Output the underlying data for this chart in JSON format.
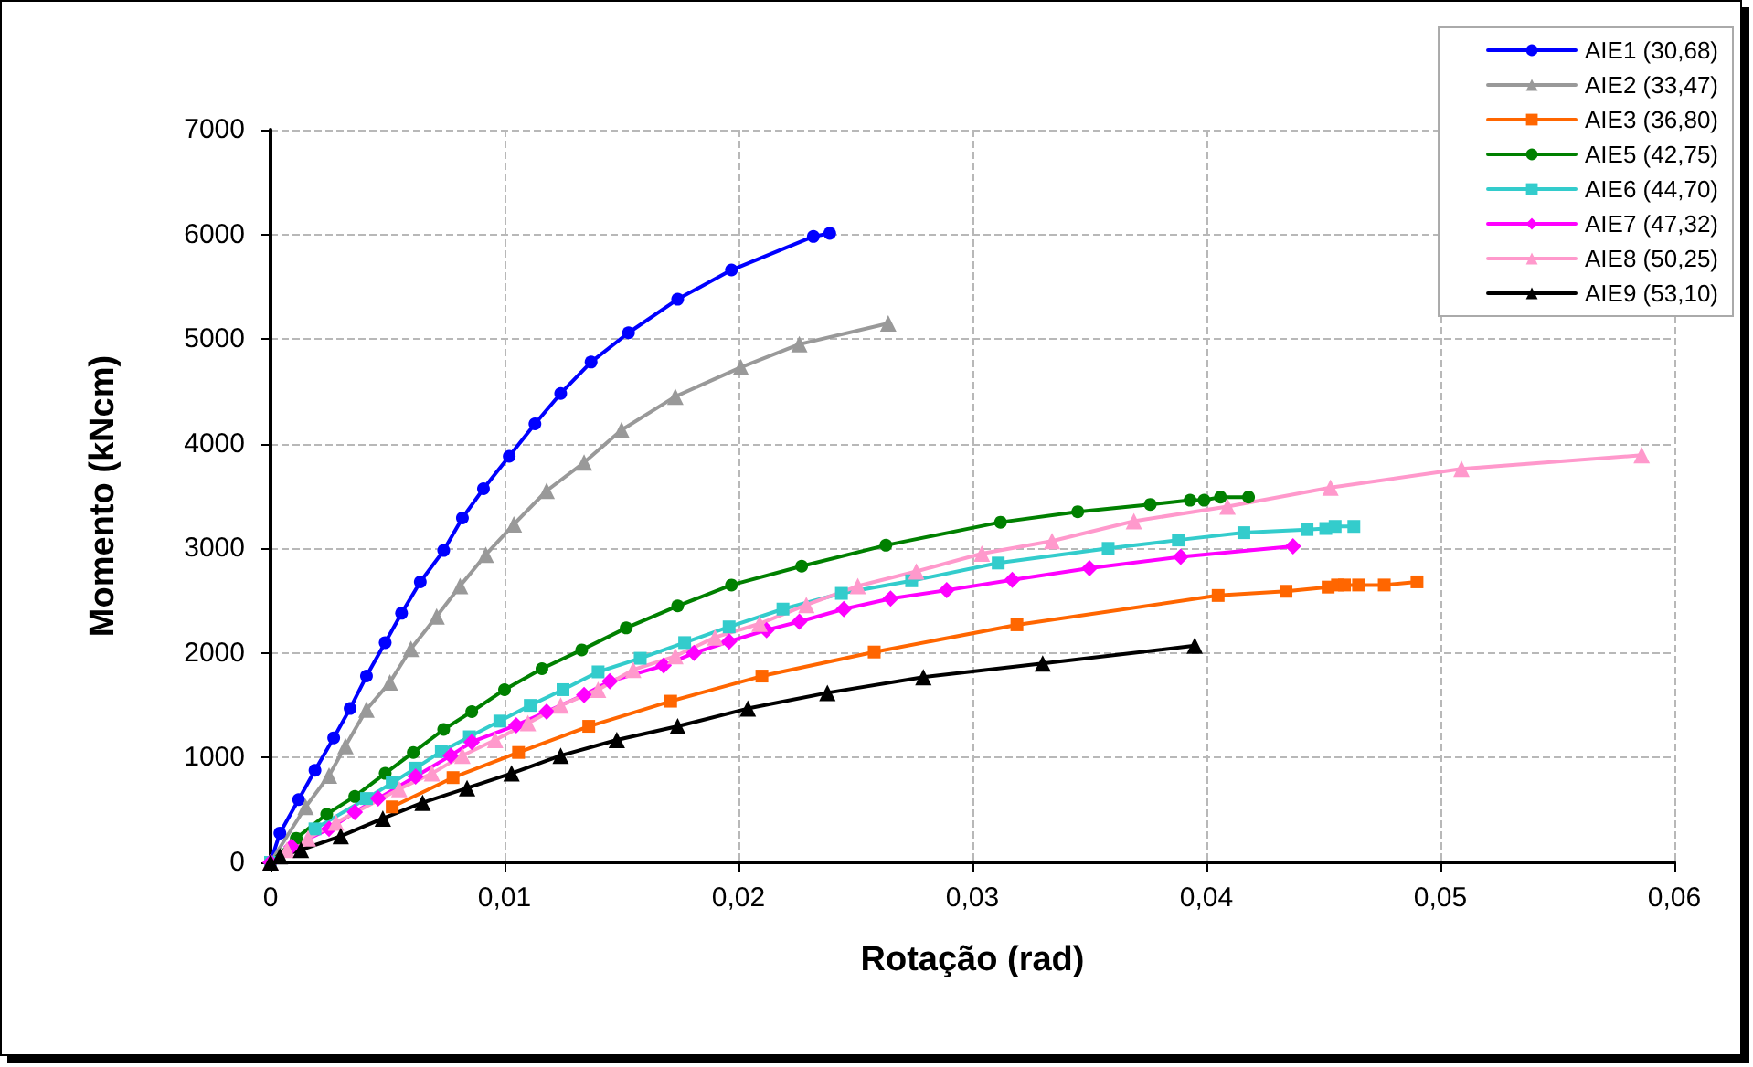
{
  "chart_data": {
    "type": "line",
    "xlabel": "Rotação (rad)",
    "ylabel": "Momento (kNcm)",
    "xlim": [
      0,
      0.06
    ],
    "xticks": [
      0,
      {
        "value": 0.01,
        "label": "0,01"
      },
      {
        "value": 0.02,
        "label": "0,02"
      },
      {
        "value": 0.03,
        "label": "0,03"
      },
      {
        "value": 0.04,
        "label": "0,04"
      },
      {
        "value": 0.05,
        "label": "0,05"
      },
      {
        "value": 0.06,
        "label": "0,06"
      }
    ],
    "ylim": [
      0,
      7000
    ],
    "yticks": [
      0,
      1000,
      2000,
      3000,
      4000,
      5000,
      6000,
      7000
    ],
    "grid": true,
    "legend": "top right",
    "line_style": "solid",
    "series": [
      {
        "name": "AIE1 (30,68)",
        "color": "#0000ff",
        "marker": "circle",
        "x": [
          0,
          0.0004,
          0.0012,
          0.0019,
          0.0027,
          0.0034,
          0.0041,
          0.0049,
          0.0056,
          0.0064,
          0.0074,
          0.0082,
          0.0091,
          0.0102,
          0.0113,
          0.0124,
          0.0137,
          0.0153,
          0.0174,
          0.0197,
          0.0232,
          0.0239
        ],
        "values": [
          0,
          280,
          600,
          880,
          1190,
          1470,
          1780,
          2100,
          2380,
          2680,
          2980,
          3290,
          3570,
          3880,
          4190,
          4480,
          4780,
          5060,
          5380,
          5660,
          5980,
          6010
        ]
      },
      {
        "name": "AIE2 (33,47)",
        "color": "#999999",
        "marker": "triangle",
        "x": [
          0,
          0.0015,
          0.0025,
          0.0032,
          0.0041,
          0.0051,
          0.006,
          0.0071,
          0.0081,
          0.0092,
          0.0104,
          0.0118,
          0.0134,
          0.015,
          0.0173,
          0.0201,
          0.0226,
          0.0264
        ],
        "values": [
          0,
          530,
          830,
          1110,
          1460,
          1720,
          2040,
          2350,
          2640,
          2940,
          3230,
          3550,
          3820,
          4130,
          4450,
          4730,
          4950,
          5150
        ]
      },
      {
        "name": "AIE3 (36,80)",
        "color": "#ff6600",
        "marker": "square",
        "x": [
          0.0052,
          0.0078,
          0.0106,
          0.0136,
          0.0171,
          0.021,
          0.0258,
          0.0319,
          0.0405,
          0.0434,
          0.0452,
          0.0456,
          0.0459,
          0.0465,
          0.0476,
          0.049
        ],
        "values": [
          530,
          810,
          1050,
          1300,
          1540,
          1780,
          2010,
          2270,
          2550,
          2590,
          2630,
          2650,
          2650,
          2650,
          2650,
          2680
        ]
      },
      {
        "name": "AIE5 (42,75)",
        "color": "#008000",
        "marker": "circle",
        "x": [
          0,
          0.0011,
          0.0024,
          0.0036,
          0.0049,
          0.0061,
          0.0074,
          0.0086,
          0.01,
          0.0116,
          0.0133,
          0.0152,
          0.0174,
          0.0197,
          0.0227,
          0.0263,
          0.0312,
          0.0345,
          0.0376,
          0.0393,
          0.0399,
          0.0406,
          0.0418
        ],
        "values": [
          0,
          230,
          460,
          630,
          850,
          1050,
          1270,
          1440,
          1650,
          1850,
          2030,
          2240,
          2450,
          2650,
          2830,
          3030,
          3250,
          3350,
          3420,
          3460,
          3460,
          3490,
          3490
        ]
      },
      {
        "name": "AIE6 (44,70)",
        "color": "#33cccc",
        "marker": "square",
        "x": [
          0,
          0.0008,
          0.0019,
          0.0041,
          0.0052,
          0.0062,
          0.0073,
          0.0085,
          0.0098,
          0.0111,
          0.0125,
          0.014,
          0.0158,
          0.0177,
          0.0196,
          0.0219,
          0.0244,
          0.0274,
          0.0311,
          0.0358,
          0.0388,
          0.0416,
          0.0443,
          0.0451,
          0.0455,
          0.0463
        ],
        "values": [
          0,
          null,
          320,
          610,
          760,
          900,
          1060,
          1200,
          1350,
          1500,
          1650,
          1820,
          1950,
          2100,
          2250,
          2420,
          2570,
          2690,
          2860,
          3000,
          3080,
          3150,
          3180,
          3190,
          3210,
          3210
        ]
      },
      {
        "name": "AIE7 (47,32)",
        "color": "#ff00ff",
        "marker": "diamond",
        "x": [
          0,
          0.0009,
          0.0025,
          0.0036,
          0.0046,
          0.0062,
          0.0077,
          0.0086,
          0.0105,
          0.0118,
          0.0134,
          0.0145,
          0.0168,
          0.0181,
          0.0196,
          0.0212,
          0.0226,
          0.0245,
          0.0265,
          0.0289,
          0.0317,
          0.035,
          0.0389,
          0.0437
        ],
        "values": [
          0,
          150,
          320,
          480,
          610,
          820,
          1020,
          1150,
          1310,
          1440,
          1600,
          1730,
          1880,
          2000,
          2110,
          2220,
          2300,
          2420,
          2520,
          2600,
          2700,
          2810,
          2920,
          3020
        ]
      },
      {
        "name": "AIE8 (50,25)",
        "color": "#ff99cc",
        "marker": "triangle",
        "x": [
          0,
          0.0007,
          0.0016,
          0.0028,
          0.0055,
          0.0069,
          0.0082,
          0.0096,
          0.011,
          0.0124,
          0.014,
          0.0155,
          0.0173,
          0.019,
          0.0209,
          0.0229,
          0.0251,
          0.0276,
          0.0304,
          0.0334,
          0.0369,
          0.0409,
          0.0453,
          0.0509,
          0.0586
        ],
        "values": [
          0,
          120,
          230,
          380,
          700,
          850,
          1020,
          1170,
          1330,
          1500,
          1650,
          1840,
          1970,
          2150,
          2280,
          2460,
          2640,
          2780,
          2950,
          3070,
          3260,
          3400,
          3580,
          3760,
          3890
        ]
      },
      {
        "name": "AIE9 (53,10)",
        "color": "#000000",
        "marker": "triangle",
        "x": [
          0,
          0.0004,
          0.0013,
          0.003,
          0.0048,
          0.0065,
          0.0084,
          0.0103,
          0.0124,
          0.0148,
          0.0174,
          0.0204,
          0.0238,
          0.0279,
          0.033,
          0.0395
        ],
        "values": [
          0,
          60,
          120,
          250,
          420,
          570,
          710,
          850,
          1020,
          1170,
          1300,
          1470,
          1620,
          1770,
          1900,
          2070
        ]
      }
    ]
  }
}
